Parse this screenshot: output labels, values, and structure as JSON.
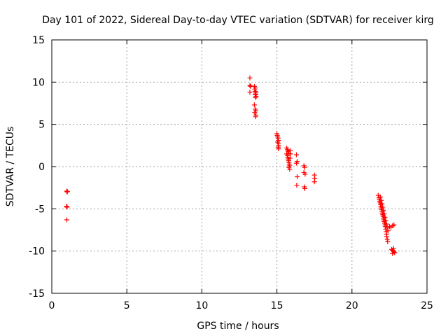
{
  "chart_data": {
    "type": "scatter",
    "title": "Day 101 of 2022, Sidereal Day-to-day VTEC variation (SDTVAR) for receiver kirg",
    "xlabel": "GPS time / hours",
    "ylabel": "SDTVAR / TECUs",
    "xlim": [
      0,
      25
    ],
    "ylim": [
      -15,
      15
    ],
    "xticks": [
      0,
      5,
      10,
      15,
      20,
      25
    ],
    "yticks": [
      -15,
      -10,
      -5,
      0,
      5,
      10,
      15
    ],
    "grid": true,
    "marker": "+",
    "series": [
      {
        "name": "SDTVAR",
        "color": "#ff0000",
        "points": [
          [
            1.0,
            -2.9
          ],
          [
            1.02,
            -3.0
          ],
          [
            1.04,
            -2.95
          ],
          [
            0.98,
            -4.7
          ],
          [
            1.0,
            -4.75
          ],
          [
            1.02,
            -4.8
          ],
          [
            1.0,
            -6.3
          ],
          [
            13.2,
            10.5
          ],
          [
            13.2,
            9.6
          ],
          [
            13.25,
            9.5
          ],
          [
            13.2,
            8.8
          ],
          [
            13.5,
            9.5
          ],
          [
            13.55,
            9.3
          ],
          [
            13.52,
            9.1
          ],
          [
            13.55,
            8.9
          ],
          [
            13.6,
            8.8
          ],
          [
            13.55,
            8.6
          ],
          [
            13.6,
            8.5
          ],
          [
            13.62,
            8.3
          ],
          [
            13.55,
            8.2
          ],
          [
            13.5,
            7.3
          ],
          [
            13.55,
            6.8
          ],
          [
            13.6,
            6.6
          ],
          [
            13.52,
            6.4
          ],
          [
            13.6,
            6.1
          ],
          [
            13.58,
            5.9
          ],
          [
            15.0,
            3.9
          ],
          [
            15.02,
            3.7
          ],
          [
            15.05,
            3.5
          ],
          [
            15.08,
            3.3
          ],
          [
            15.1,
            3.1
          ],
          [
            15.05,
            2.9
          ],
          [
            15.1,
            2.7
          ],
          [
            15.12,
            2.5
          ],
          [
            15.08,
            2.3
          ],
          [
            15.1,
            2.1
          ],
          [
            15.65,
            2.2
          ],
          [
            15.7,
            2.0
          ],
          [
            15.75,
            1.8
          ],
          [
            15.8,
            1.6
          ],
          [
            15.65,
            1.5
          ],
          [
            15.7,
            1.3
          ],
          [
            15.72,
            1.1
          ],
          [
            15.75,
            0.9
          ],
          [
            15.78,
            0.7
          ],
          [
            15.8,
            0.5
          ],
          [
            15.82,
            0.3
          ],
          [
            15.85,
            0.1
          ],
          [
            15.8,
            -0.1
          ],
          [
            15.85,
            -0.3
          ],
          [
            15.9,
            1.9
          ],
          [
            15.9,
            1.5
          ],
          [
            15.88,
            1.0
          ],
          [
            16.3,
            1.4
          ],
          [
            16.35,
            0.6
          ],
          [
            16.3,
            0.4
          ],
          [
            16.35,
            -1.2
          ],
          [
            16.32,
            -2.2
          ],
          [
            16.8,
            0.1
          ],
          [
            16.85,
            -0.1
          ],
          [
            16.8,
            -0.7
          ],
          [
            16.88,
            -0.9
          ],
          [
            16.82,
            -2.4
          ],
          [
            16.86,
            -2.6
          ],
          [
            17.5,
            -1.0
          ],
          [
            17.52,
            -1.4
          ],
          [
            17.5,
            -1.8
          ],
          [
            21.75,
            -3.4
          ],
          [
            21.8,
            -3.7
          ],
          [
            21.82,
            -3.9
          ],
          [
            21.85,
            -4.1
          ],
          [
            21.88,
            -4.3
          ],
          [
            21.9,
            -4.5
          ],
          [
            21.92,
            -4.7
          ],
          [
            21.95,
            -4.9
          ],
          [
            21.98,
            -5.1
          ],
          [
            22.0,
            -5.3
          ],
          [
            22.02,
            -5.5
          ],
          [
            22.05,
            -5.7
          ],
          [
            22.08,
            -5.9
          ],
          [
            22.1,
            -6.1
          ],
          [
            22.12,
            -6.3
          ],
          [
            22.15,
            -6.5
          ],
          [
            22.18,
            -6.7
          ],
          [
            22.2,
            -6.9
          ],
          [
            22.22,
            -7.1
          ],
          [
            22.25,
            -7.4
          ],
          [
            22.28,
            -7.7
          ],
          [
            22.3,
            -8.0
          ],
          [
            22.32,
            -8.3
          ],
          [
            22.35,
            -8.6
          ],
          [
            22.38,
            -8.9
          ],
          [
            21.9,
            -3.6
          ],
          [
            21.95,
            -4.0
          ],
          [
            22.0,
            -4.4
          ],
          [
            22.05,
            -4.8
          ],
          [
            22.1,
            -5.2
          ],
          [
            22.15,
            -5.6
          ],
          [
            22.2,
            -6.0
          ],
          [
            22.25,
            -6.4
          ],
          [
            22.3,
            -6.8
          ],
          [
            22.35,
            -7.2
          ],
          [
            22.4,
            -7.6
          ],
          [
            22.5,
            -7.1
          ],
          [
            22.6,
            -7.2
          ],
          [
            22.7,
            -7.0
          ],
          [
            22.8,
            -6.9
          ],
          [
            22.65,
            -9.8
          ],
          [
            22.7,
            -9.9
          ],
          [
            22.75,
            -10.0
          ],
          [
            22.8,
            -10.1
          ],
          [
            22.85,
            -10.2
          ],
          [
            22.7,
            -10.3
          ],
          [
            22.78,
            -9.7
          ]
        ]
      }
    ]
  }
}
